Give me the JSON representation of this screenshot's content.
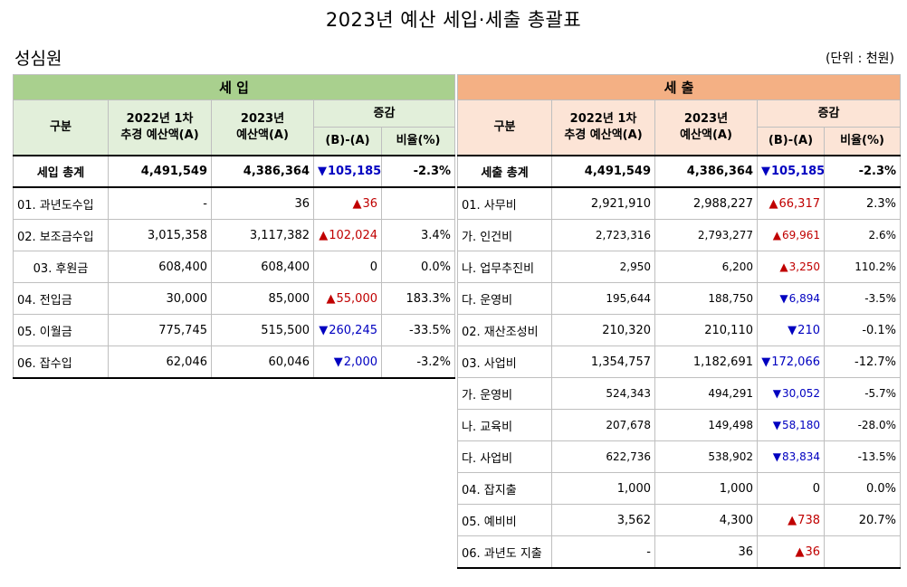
{
  "title": "2023년 예산 세입·세출 총괄표",
  "org": "성심원",
  "unit": "(단위 : 천원)",
  "revenue": {
    "section": "세  입",
    "headers": {
      "category": "구분",
      "prev_line1": "2022년 1차",
      "prev_line2": "추경 예산액(A)",
      "curr_line1": "2023년",
      "curr_line2": "예산액(A)",
      "change": "증감",
      "diff": "(B)-(A)",
      "ratio": "비율(%)"
    },
    "rows": [
      {
        "label": "세입 총계",
        "prev": "4,491,549",
        "curr": "4,386,364",
        "dir": "▼",
        "diff": "105,185",
        "ratio": "-2.3%"
      },
      {
        "label": "01. 과년도수입",
        "prev": "-",
        "curr": "36",
        "dir": "▲",
        "diff": "36",
        "ratio": ""
      },
      {
        "label": "02. 보조금수입",
        "prev": "3,015,358",
        "curr": "3,117,382",
        "dir": "▲",
        "diff": "102,024",
        "ratio": "3.4%"
      },
      {
        "label": "03. 후원금",
        "prev": "608,400",
        "curr": "608,400",
        "dir": "",
        "diff": "0",
        "ratio": "0.0%"
      },
      {
        "label": "04. 전입금",
        "prev": "30,000",
        "curr": "85,000",
        "dir": "▲",
        "diff": "55,000",
        "ratio": "183.3%"
      },
      {
        "label": "05. 이월금",
        "prev": "775,745",
        "curr": "515,500",
        "dir": "▼",
        "diff": "260,245",
        "ratio": "-33.5%"
      },
      {
        "label": "06. 잡수입",
        "prev": "62,046",
        "curr": "60,046",
        "dir": "▼",
        "diff": "2,000",
        "ratio": "-3.2%"
      }
    ]
  },
  "expense": {
    "section": "세  출",
    "headers": {
      "category": "구분",
      "prev_line1": "2022년 1차",
      "prev_line2": "추경 예산액(A)",
      "curr_line1": "2023년",
      "curr_line2": "예산액(A)",
      "change": "증감",
      "diff": "(B)-(A)",
      "ratio": "비율(%)"
    },
    "rows": [
      {
        "label": "세출 총계",
        "prev": "4,491,549",
        "curr": "4,386,364",
        "dir": "▼",
        "diff": "105,185",
        "ratio": "-2.3%"
      },
      {
        "label": "01. 사무비",
        "prev": "2,921,910",
        "curr": "2,988,227",
        "dir": "▲",
        "diff": "66,317",
        "ratio": "2.3%"
      },
      {
        "label": "가. 인건비",
        "prev": "2,723,316",
        "curr": "2,793,277",
        "dir": "▲",
        "diff": "69,961",
        "ratio": "2.6%"
      },
      {
        "label": "나. 업무추진비",
        "prev": "2,950",
        "curr": "6,200",
        "dir": "▲",
        "diff": "3,250",
        "ratio": "110.2%"
      },
      {
        "label": "다. 운영비",
        "prev": "195,644",
        "curr": "188,750",
        "dir": "▼",
        "diff": "6,894",
        "ratio": "-3.5%"
      },
      {
        "label": "02. 재산조성비",
        "prev": "210,320",
        "curr": "210,110",
        "dir": "▼",
        "diff": "210",
        "ratio": "-0.1%"
      },
      {
        "label": "03. 사업비",
        "prev": "1,354,757",
        "curr": "1,182,691",
        "dir": "▼",
        "diff": "172,066",
        "ratio": "-12.7%"
      },
      {
        "label": "가. 운영비",
        "prev": "524,343",
        "curr": "494,291",
        "dir": "▼",
        "diff": "30,052",
        "ratio": "-5.7%"
      },
      {
        "label": "나. 교육비",
        "prev": "207,678",
        "curr": "149,498",
        "dir": "▼",
        "diff": "58,180",
        "ratio": "-28.0%"
      },
      {
        "label": "다. 사업비",
        "prev": "622,736",
        "curr": "538,902",
        "dir": "▼",
        "diff": "83,834",
        "ratio": "-13.5%"
      },
      {
        "label": "04. 잡지출",
        "prev": "1,000",
        "curr": "1,000",
        "dir": "",
        "diff": "0",
        "ratio": "0.0%"
      },
      {
        "label": "05. 예비비",
        "prev": "3,562",
        "curr": "4,300",
        "dir": "▲",
        "diff": "738",
        "ratio": "20.7%"
      },
      {
        "label": "06. 과년도 지출",
        "prev": "-",
        "curr": "36",
        "dir": "▲",
        "diff": "36",
        "ratio": ""
      }
    ]
  },
  "colors": {
    "revenue_header": "#a9d08e",
    "revenue_subheader": "#e2efda",
    "expense_header": "#f4b084",
    "expense_subheader": "#fce4d6",
    "increase": "#c00000",
    "decrease": "#0000c0"
  }
}
